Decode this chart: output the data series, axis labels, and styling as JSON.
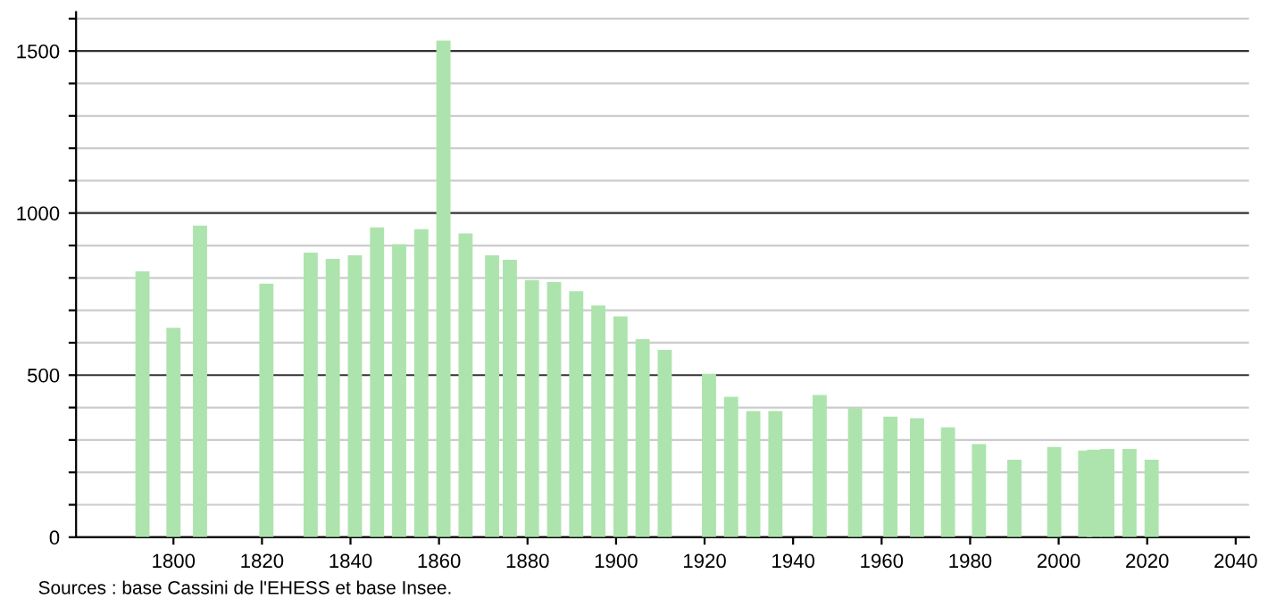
{
  "chart_data": {
    "type": "bar",
    "x": [
      1793,
      1800,
      1806,
      1821,
      1831,
      1836,
      1841,
      1846,
      1851,
      1856,
      1861,
      1866,
      1872,
      1876,
      1881,
      1886,
      1891,
      1896,
      1901,
      1906,
      1911,
      1921,
      1926,
      1931,
      1936,
      1946,
      1954,
      1962,
      1968,
      1975,
      1982,
      1990,
      1999,
      2006,
      2008,
      2011,
      2016,
      2021
    ],
    "values": [
      820,
      646,
      961,
      782,
      878,
      859,
      870,
      956,
      904,
      950,
      1532,
      937,
      870,
      856,
      793,
      787,
      759,
      715,
      681,
      611,
      578,
      504,
      433,
      389,
      389,
      439,
      398,
      372,
      367,
      339,
      287,
      239,
      278,
      267,
      270,
      272,
      272,
      239
    ],
    "color": "#ade4ad",
    "xlim": [
      1778,
      2043
    ],
    "xticks": [
      1800,
      1820,
      1840,
      1860,
      1880,
      1900,
      1920,
      1940,
      1960,
      1980,
      2000,
      2020,
      2040
    ],
    "ylim": [
      0,
      1620
    ],
    "yticks": [
      0,
      {
        "value": 100,
        "label": null
      },
      {
        "value": 200,
        "label": null
      },
      {
        "value": 300,
        "label": null
      },
      {
        "value": 400,
        "label": null
      },
      500,
      {
        "value": 600,
        "label": null
      },
      {
        "value": 700,
        "label": null
      },
      {
        "value": 800,
        "label": null
      },
      {
        "value": 900,
        "label": null
      },
      1000,
      {
        "value": 1100,
        "label": null
      },
      {
        "value": 1200,
        "label": null
      },
      {
        "value": 1300,
        "label": null
      },
      {
        "value": 1400,
        "label": null
      },
      1500,
      {
        "value": 1600,
        "label": null
      }
    ],
    "grid": "y",
    "annotations": [
      "Sources : base Cassini de l'EHESS et base Insee."
    ]
  }
}
